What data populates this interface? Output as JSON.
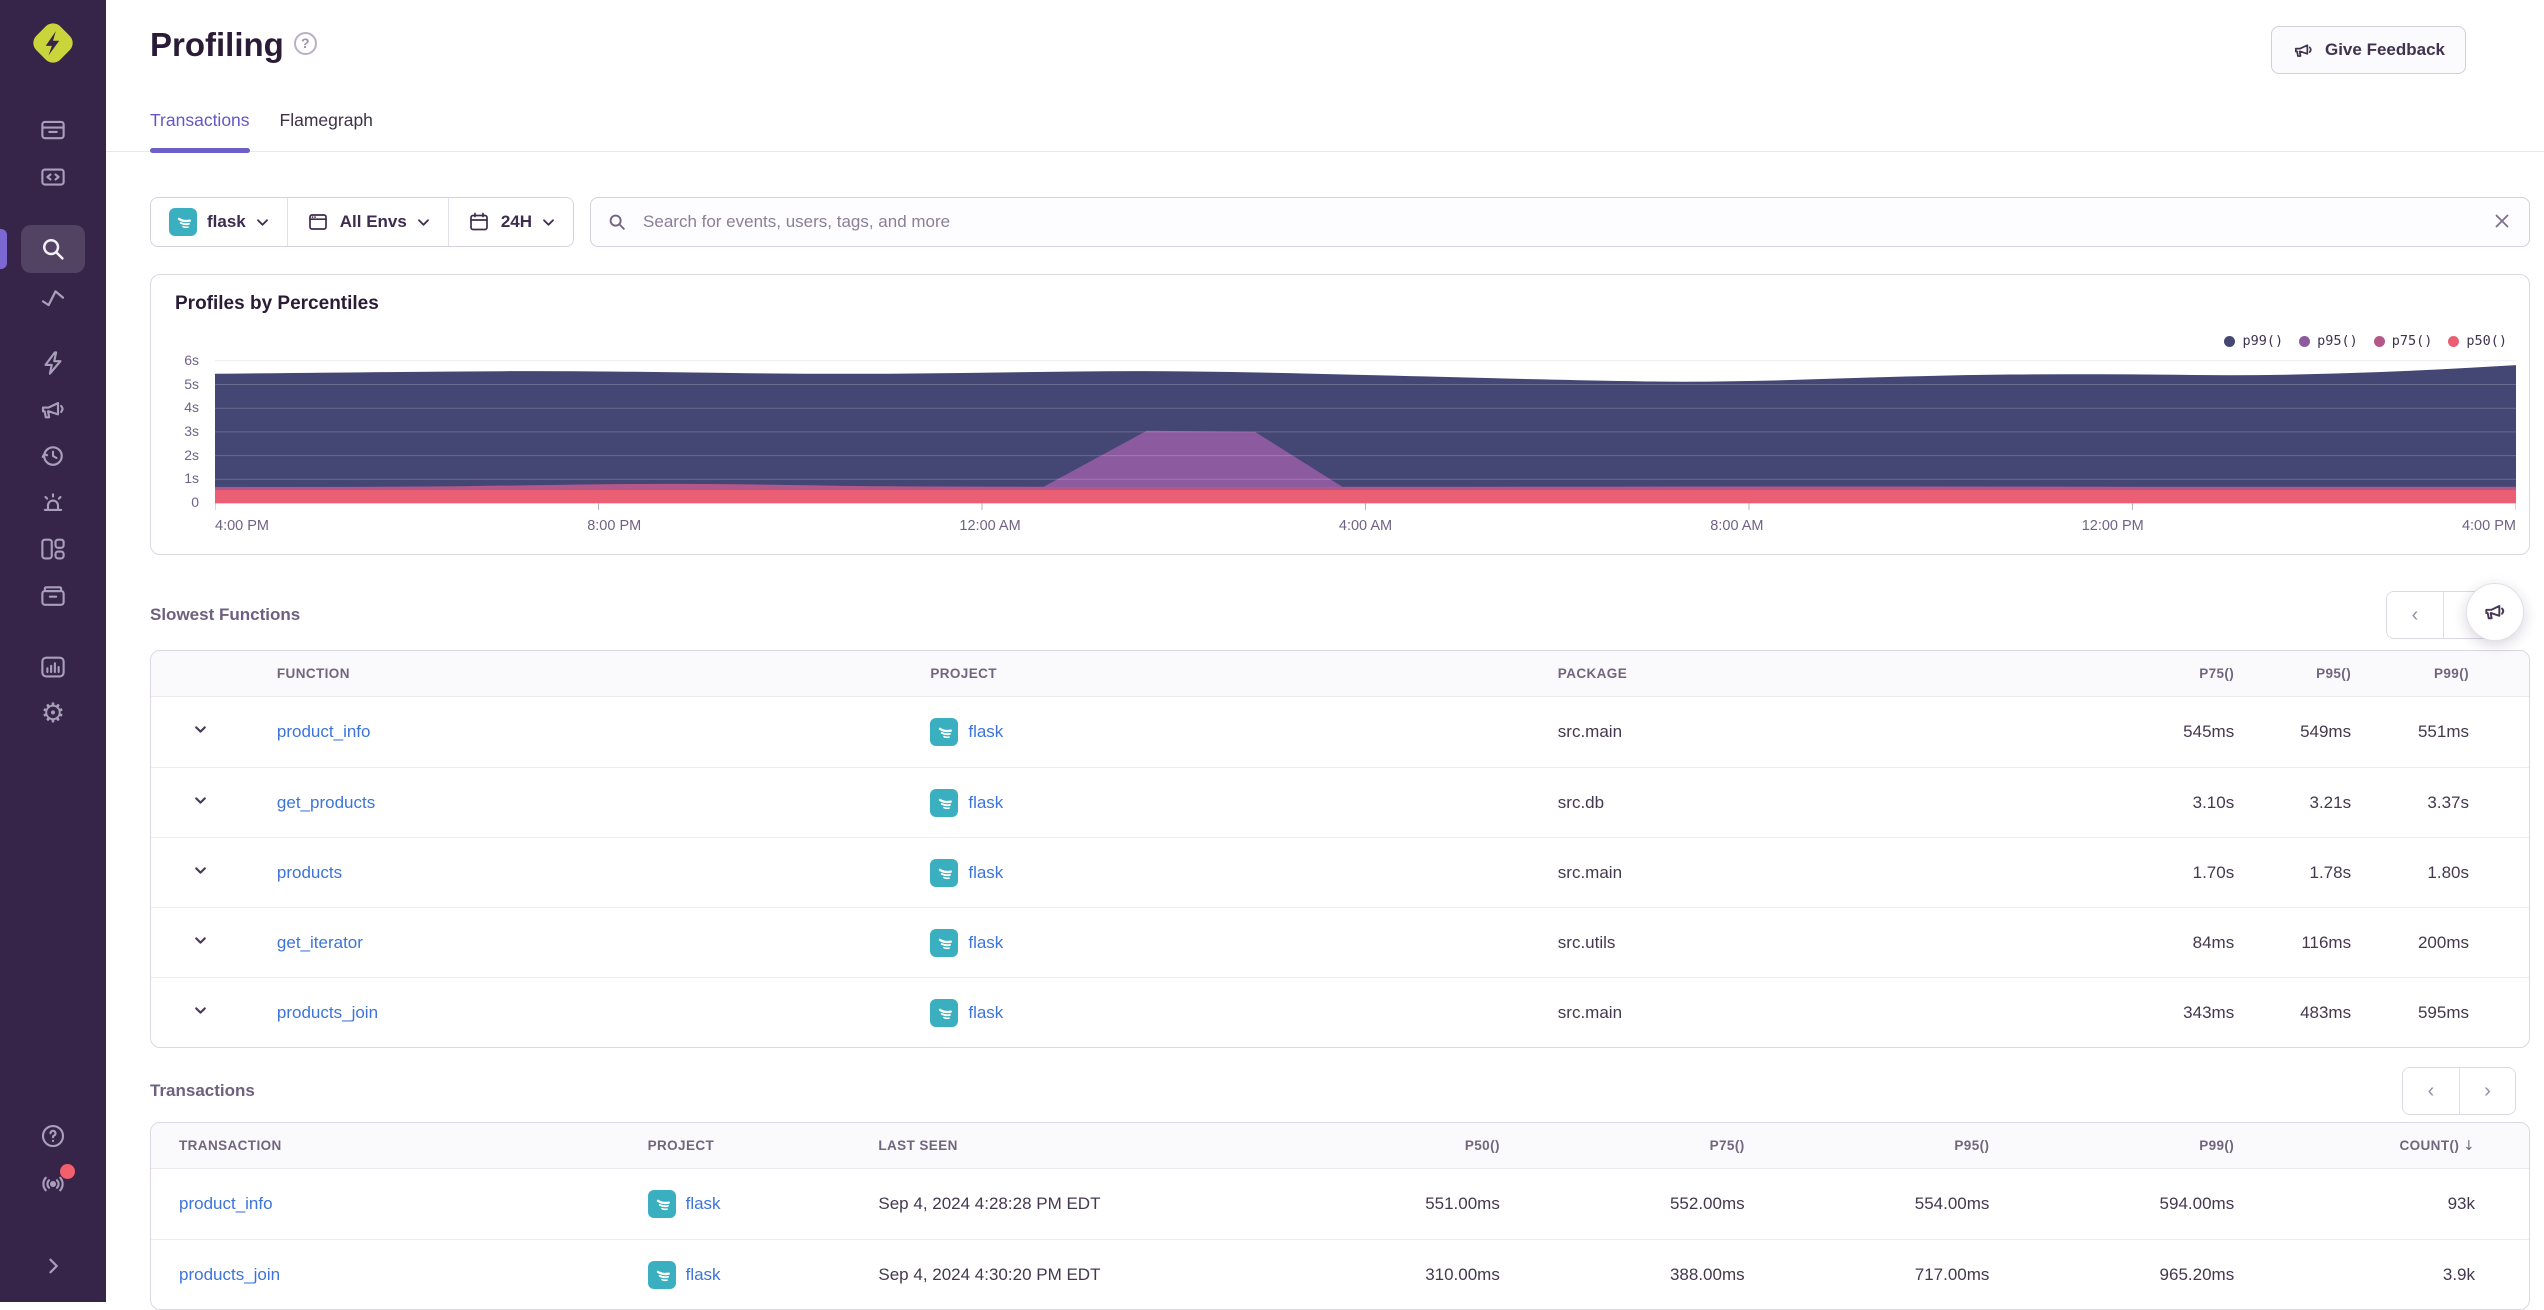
{
  "sidebar": {
    "logo": "sentry-dev-logo",
    "items": [
      "issues",
      "projects",
      "explore",
      "metrics",
      "flash",
      "feedback",
      "replays",
      "alerts",
      "dashboards",
      "releases",
      "stats",
      "settings"
    ],
    "active_item": "explore",
    "footer_items": [
      "help",
      "whats-new",
      "expand"
    ]
  },
  "header": {
    "title": "Profiling",
    "feedback_label": "Give Feedback"
  },
  "tabs": [
    {
      "label": "Transactions",
      "active": true
    },
    {
      "label": "Flamegraph",
      "active": false
    }
  ],
  "filters": {
    "project": "flask",
    "environment": "All Envs",
    "period": "24H"
  },
  "search": {
    "placeholder": "Search for events, users, tags, and more"
  },
  "chart_data": {
    "type": "area",
    "title": "Profiles by Percentiles",
    "y_unit": "seconds",
    "ylim": [
      0,
      6.4
    ],
    "y_ticks": [
      "6s",
      "5s",
      "4s",
      "3s",
      "2s",
      "1s",
      "0"
    ],
    "x_ticks": [
      "4:00 PM",
      "8:00 PM",
      "12:00 AM",
      "4:00 AM",
      "8:00 AM",
      "12:00 PM",
      "4:00 PM"
    ],
    "legend_position": "top-right",
    "grid": true,
    "series": [
      {
        "name": "p99()",
        "color": "#444674",
        "smooth": true,
        "points": [
          [
            0,
            5.45
          ],
          [
            0.05,
            5.5
          ],
          [
            0.1,
            5.55
          ],
          [
            0.15,
            5.57
          ],
          [
            0.2,
            5.52
          ],
          [
            0.25,
            5.45
          ],
          [
            0.3,
            5.45
          ],
          [
            0.35,
            5.52
          ],
          [
            0.4,
            5.58
          ],
          [
            0.45,
            5.52
          ],
          [
            0.5,
            5.4
          ],
          [
            0.55,
            5.28
          ],
          [
            0.6,
            5.16
          ],
          [
            0.64,
            5.1
          ],
          [
            0.68,
            5.17
          ],
          [
            0.72,
            5.3
          ],
          [
            0.76,
            5.4
          ],
          [
            0.8,
            5.44
          ],
          [
            0.84,
            5.42
          ],
          [
            0.88,
            5.38
          ],
          [
            0.92,
            5.45
          ],
          [
            0.96,
            5.6
          ],
          [
            1,
            5.82
          ]
        ]
      },
      {
        "name": "p95()",
        "color": "#8c5a9e",
        "smooth": false,
        "points": [
          [
            0,
            0.68
          ],
          [
            0.36,
            0.68
          ],
          [
            0.405,
            3.05
          ],
          [
            0.452,
            3.0
          ],
          [
            0.49,
            0.68
          ],
          [
            1,
            0.68
          ]
        ]
      },
      {
        "name": "p75()",
        "color": "#b4588a",
        "smooth": true,
        "points": [
          [
            0,
            0.66
          ],
          [
            0.08,
            0.68
          ],
          [
            0.14,
            0.75
          ],
          [
            0.19,
            0.82
          ],
          [
            0.24,
            0.78
          ],
          [
            0.3,
            0.68
          ],
          [
            0.55,
            0.68
          ],
          [
            0.7,
            0.7
          ],
          [
            0.85,
            0.68
          ],
          [
            1,
            0.68
          ]
        ]
      },
      {
        "name": "p50()",
        "color": "#ea5f74",
        "smooth": false,
        "points": [
          [
            0,
            0.55
          ],
          [
            0.5,
            0.55
          ],
          [
            1,
            0.55
          ]
        ]
      }
    ]
  },
  "slowest_functions": {
    "title": "Slowest Functions",
    "columns": [
      "FUNCTION",
      "PROJECT",
      "PACKAGE",
      "P75()",
      "P95()",
      "P99()"
    ],
    "rows": [
      {
        "function": "product_info",
        "project": "flask",
        "package": "src.main",
        "p75": "545ms",
        "p95": "549ms",
        "p99": "551ms"
      },
      {
        "function": "get_products",
        "project": "flask",
        "package": "src.db",
        "p75": "3.10s",
        "p95": "3.21s",
        "p99": "3.37s"
      },
      {
        "function": "products",
        "project": "flask",
        "package": "src.main",
        "p75": "1.70s",
        "p95": "1.78s",
        "p99": "1.80s"
      },
      {
        "function": "get_iterator",
        "project": "flask",
        "package": "src.utils",
        "p75": "84ms",
        "p95": "116ms",
        "p99": "200ms"
      },
      {
        "function": "products_join",
        "project": "flask",
        "package": "src.main",
        "p75": "343ms",
        "p95": "483ms",
        "p99": "595ms"
      }
    ]
  },
  "transactions": {
    "title": "Transactions",
    "columns": [
      "TRANSACTION",
      "PROJECT",
      "LAST SEEN",
      "P50()",
      "P75()",
      "P95()",
      "P99()",
      "COUNT()"
    ],
    "sorted_by": "COUNT()",
    "sort_direction": "desc",
    "rows": [
      {
        "transaction": "product_info",
        "project": "flask",
        "last_seen": "Sep 4, 2024 4:28:28 PM EDT",
        "p50": "551.00ms",
        "p75": "552.00ms",
        "p95": "554.00ms",
        "p99": "594.00ms",
        "count": "93k"
      },
      {
        "transaction": "products_join",
        "project": "flask",
        "last_seen": "Sep 4, 2024 4:30:20 PM EDT",
        "p50": "310.00ms",
        "p75": "388.00ms",
        "p95": "717.00ms",
        "p99": "965.20ms",
        "count": "3.9k"
      }
    ]
  },
  "colors": {
    "accent": "#6c5fc7",
    "link": "#3c74db",
    "flask_teal": "#3aafbf",
    "sidebar_bg": "#372549",
    "p99": "#444674",
    "p95": "#8c5a9e",
    "p75": "#b4588a",
    "p50": "#ea5f74",
    "notification": "#f3606c"
  }
}
